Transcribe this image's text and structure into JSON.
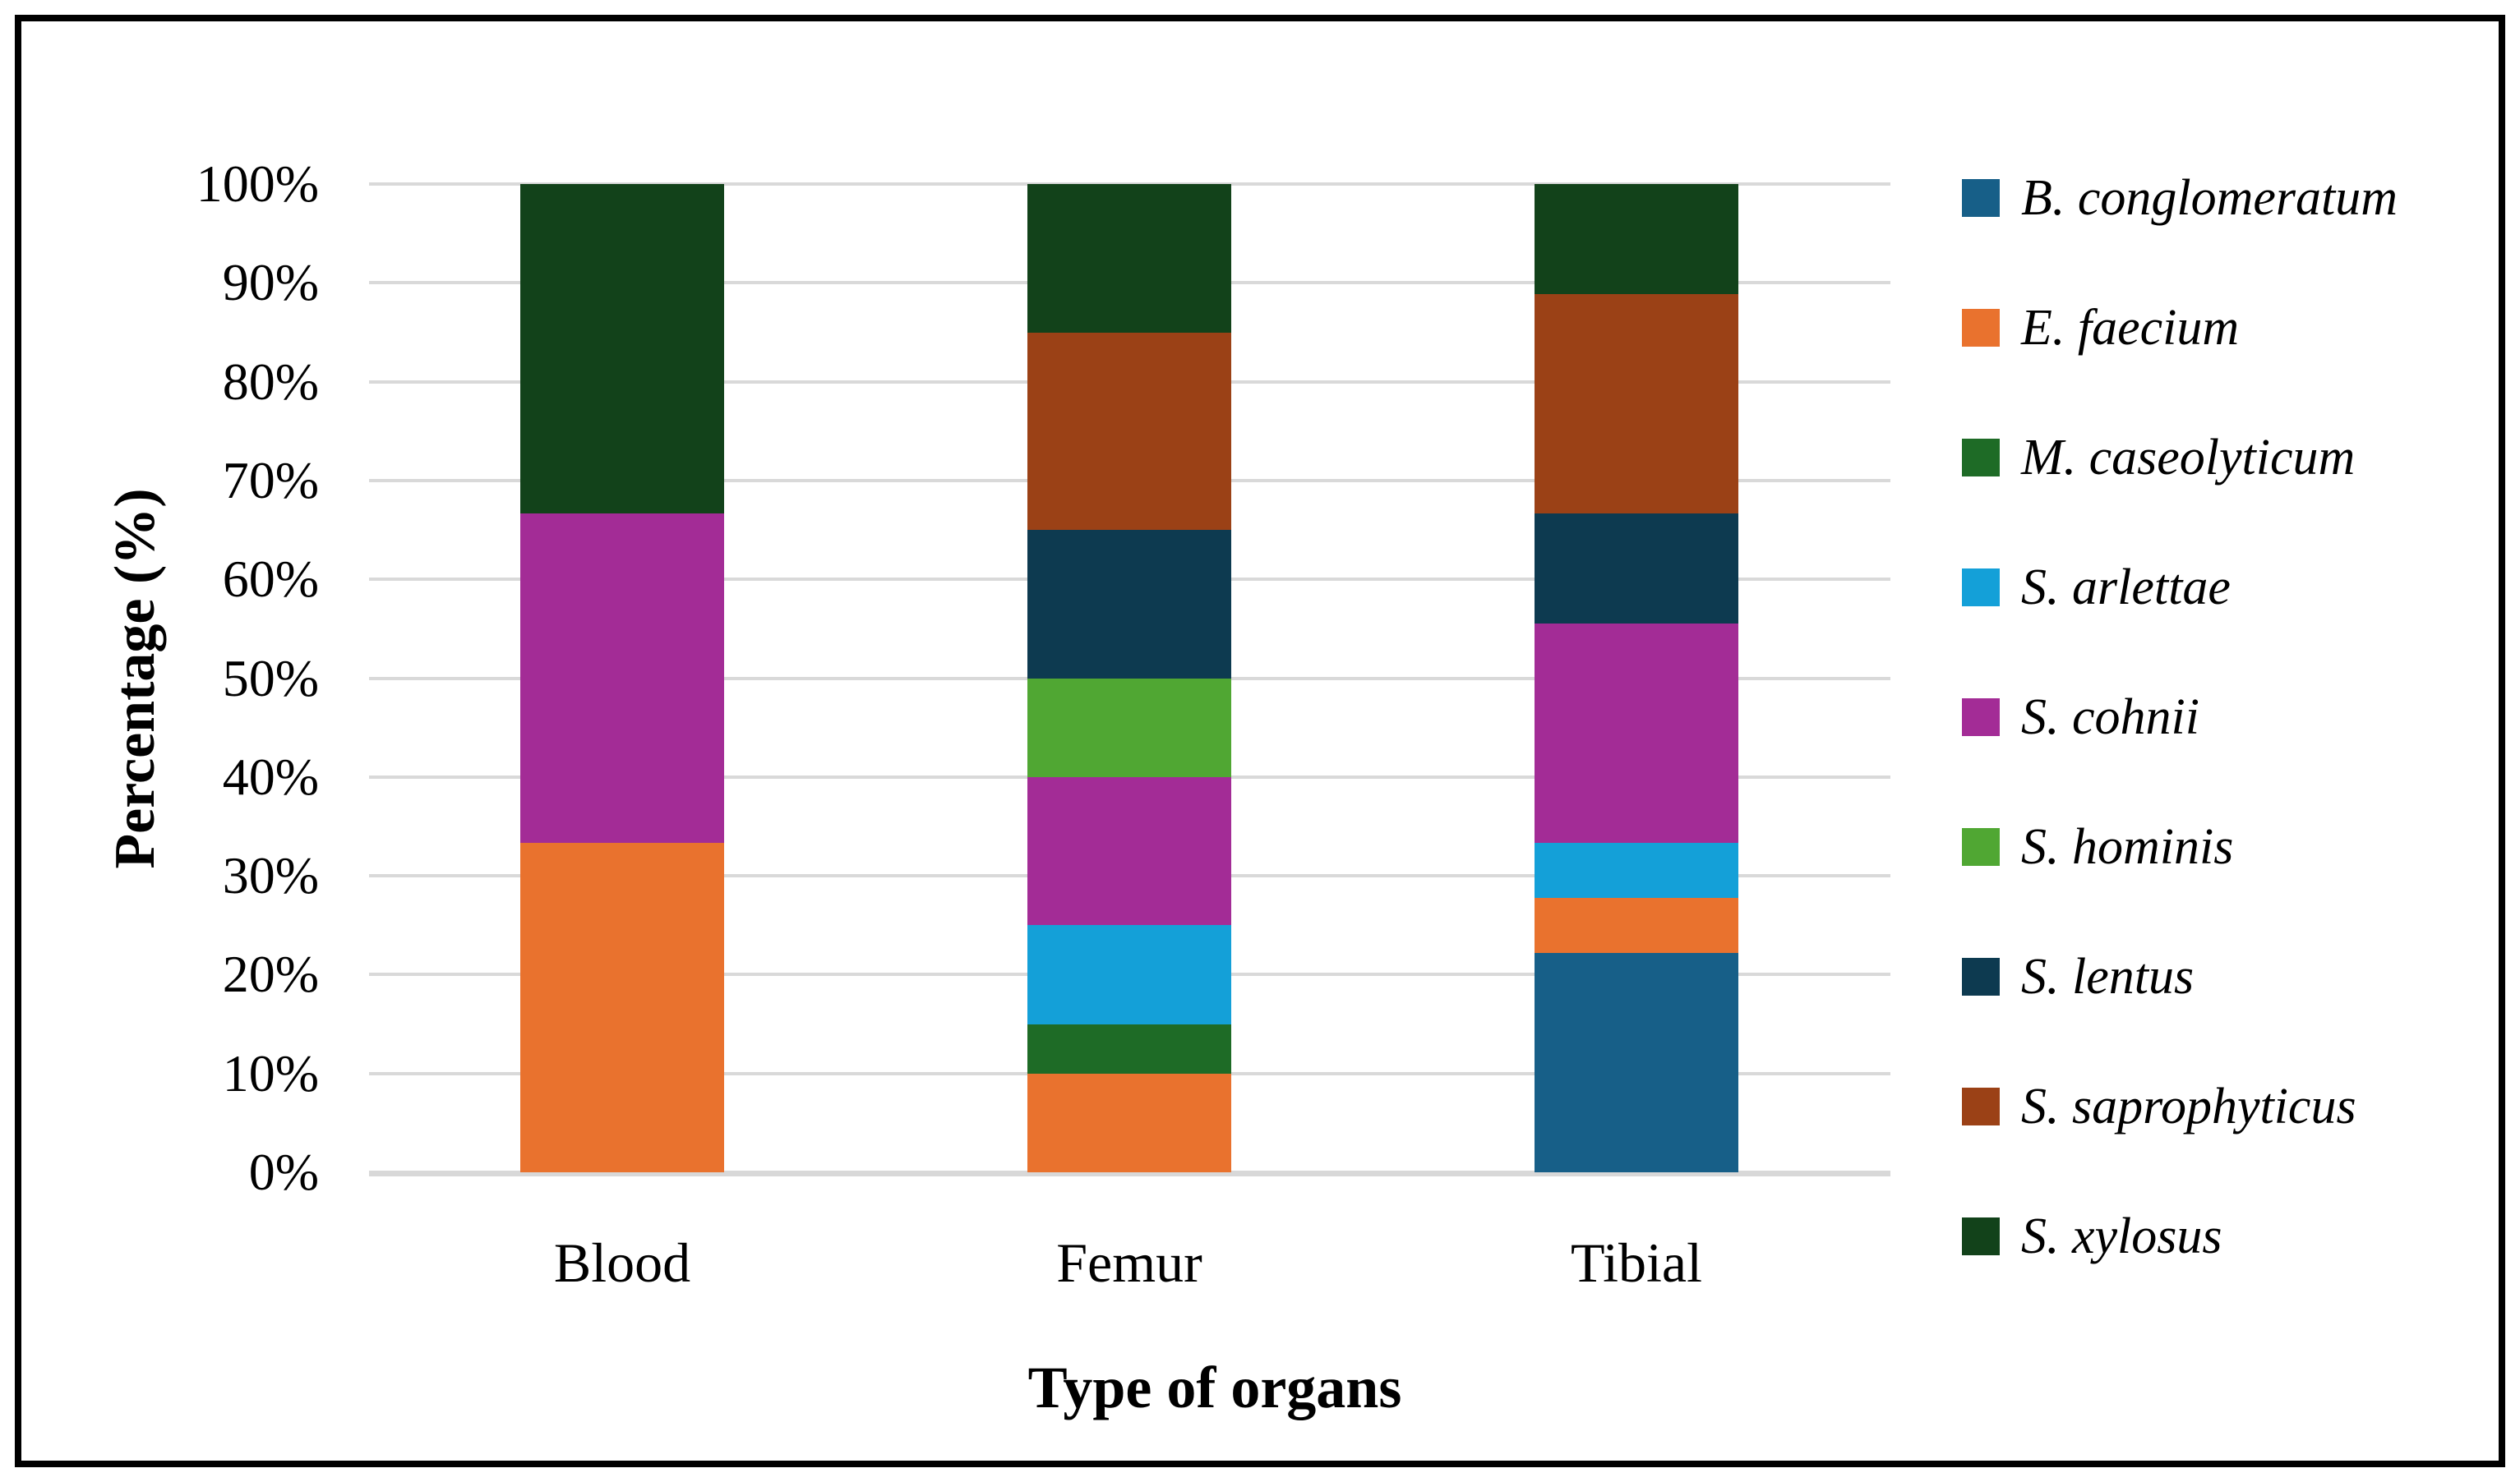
{
  "chart_data": {
    "type": "bar",
    "variant": "stacked-100",
    "title": "",
    "xlabel": "Type of organs",
    "ylabel": "Percentage (%)",
    "categories": [
      "Blood",
      "Femur",
      "Tibial"
    ],
    "y_ticks": [
      "100%",
      "90%",
      "80%",
      "70%",
      "60%",
      "50%",
      "40%",
      "30%",
      "20%",
      "10%",
      "0%"
    ],
    "ylim": [
      0,
      100
    ],
    "grid": "horizontal",
    "gridline_color": "#d9d9d9",
    "legend_position": "right",
    "series": [
      {
        "name": "B. conglomeratum",
        "color": "#175F88",
        "values": [
          0,
          0,
          22.22
        ]
      },
      {
        "name": "E. faecium",
        "color": "#E9722E",
        "values": [
          33.33,
          10,
          5.56
        ]
      },
      {
        "name": "M. caseolyticum",
        "color": "#1E6B26",
        "values": [
          0,
          5,
          0
        ]
      },
      {
        "name": "S. arlettae",
        "color": "#14A0D8",
        "values": [
          0,
          10,
          5.56
        ]
      },
      {
        "name": "S. cohnii",
        "color": "#A32C96",
        "values": [
          33.33,
          15,
          22.22
        ]
      },
      {
        "name": "S. hominis",
        "color": "#50A733",
        "values": [
          0,
          10,
          0
        ]
      },
      {
        "name": "S. lentus",
        "color": "#0D3A50",
        "values": [
          0,
          15,
          11.11
        ]
      },
      {
        "name": "S. saprophyticus",
        "color": "#9B4116",
        "values": [
          0,
          20,
          22.22
        ]
      },
      {
        "name": "S. xylosus",
        "color": "#12421A",
        "values": [
          33.34,
          15,
          11.11
        ]
      }
    ]
  }
}
